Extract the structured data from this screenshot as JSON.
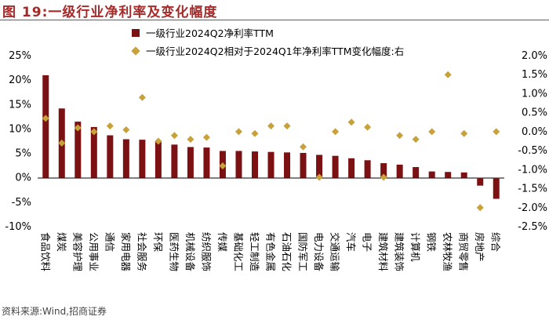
{
  "figure": {
    "title": "图 19:一级行业净利率及变化幅度",
    "source": "资料来源:Wind,招商证券"
  },
  "colors": {
    "bar": "#7b1113",
    "dot": "#c8a13a",
    "title": "#a52a2a"
  },
  "chart_data": {
    "type": "bar",
    "title": "一级行业净利率及变化幅度",
    "categories": [
      "食品饮料",
      "煤炭",
      "美容护理",
      "公用事业",
      "通信",
      "家用电器",
      "社会服务",
      "环保",
      "医药生物",
      "机械设备",
      "纺织服饰",
      "传媒",
      "基础化工",
      "轻工制造",
      "有色金属",
      "石油石化",
      "国防军工",
      "电力设备",
      "交通运输",
      "汽车",
      "电子",
      "建筑材料",
      "建筑装饰",
      "计算机",
      "钢铁",
      "农林牧渔",
      "商贸零售",
      "房地产",
      "综合"
    ],
    "series": [
      {
        "name": "一级行业2024Q2净利率TTM",
        "axis": "left",
        "kind": "bar",
        "values": [
          21.0,
          14.2,
          11.5,
          10.4,
          8.7,
          7.9,
          7.8,
          7.5,
          6.8,
          6.3,
          6.2,
          5.5,
          5.5,
          5.4,
          5.3,
          5.2,
          5.1,
          4.7,
          4.5,
          4.0,
          3.6,
          3.0,
          2.7,
          2.2,
          1.3,
          1.2,
          1.1,
          -1.6,
          -4.3
        ]
      },
      {
        "name": "一级行业2024Q2相对于2024Q1年净利率TTM变化幅度:右",
        "axis": "right",
        "kind": "diamond",
        "values": [
          0.35,
          -0.3,
          0.1,
          0.0,
          0.15,
          0.05,
          0.9,
          -0.25,
          -0.1,
          -0.2,
          -0.15,
          -0.9,
          0.0,
          -0.05,
          0.15,
          0.15,
          -0.4,
          -1.2,
          0.0,
          0.25,
          0.12,
          -1.2,
          -0.1,
          -0.2,
          0.0,
          1.5,
          -0.05,
          -2.0,
          0.0
        ]
      }
    ],
    "left_axis": {
      "min": -10,
      "max": 25,
      "step": 5,
      "ticks": [
        "-10%",
        "-5%",
        "0%",
        "5%",
        "10%",
        "15%",
        "20%",
        "25%"
      ]
    },
    "right_axis": {
      "min": -2.5,
      "max": 2.0,
      "step": 0.5,
      "ticks": [
        "-2.5%",
        "-2.0%",
        "-1.5%",
        "-1.0%",
        "-0.5%",
        "0.0%",
        "0.5%",
        "1.0%",
        "1.5%",
        "2.0%"
      ]
    },
    "legend": [
      "一级行业2024Q2净利率TTM",
      "一级行业2024Q2相对于2024Q1年净利率TTM变化幅度:右"
    ],
    "legend_placement": "top-left",
    "grid": false
  }
}
